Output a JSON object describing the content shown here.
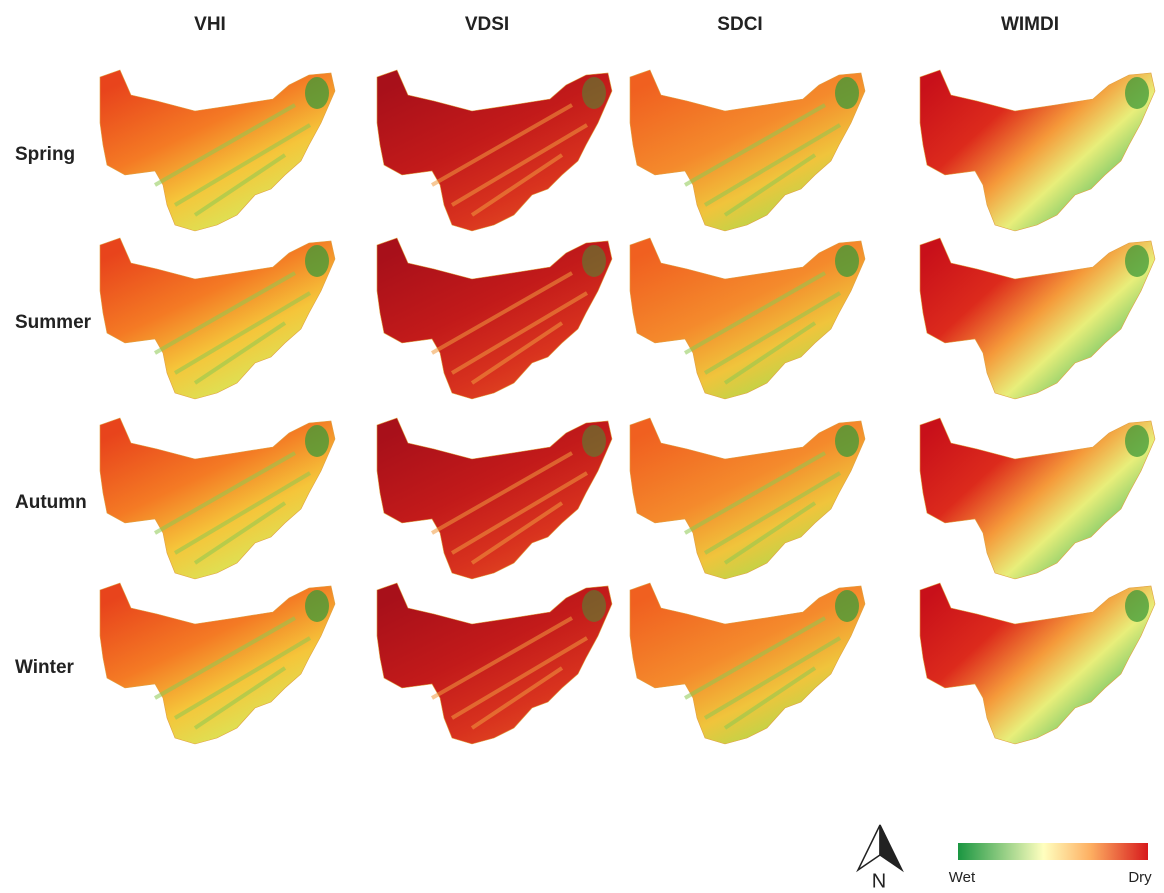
{
  "columns": [
    "VHI",
    "VDSI",
    "SDCI",
    "WIMDI"
  ],
  "rows": [
    "Spring",
    "Summer",
    "Autumn",
    "Winter"
  ],
  "north": "N",
  "legend": {
    "low": "Wet",
    "high": "Dry"
  }
}
